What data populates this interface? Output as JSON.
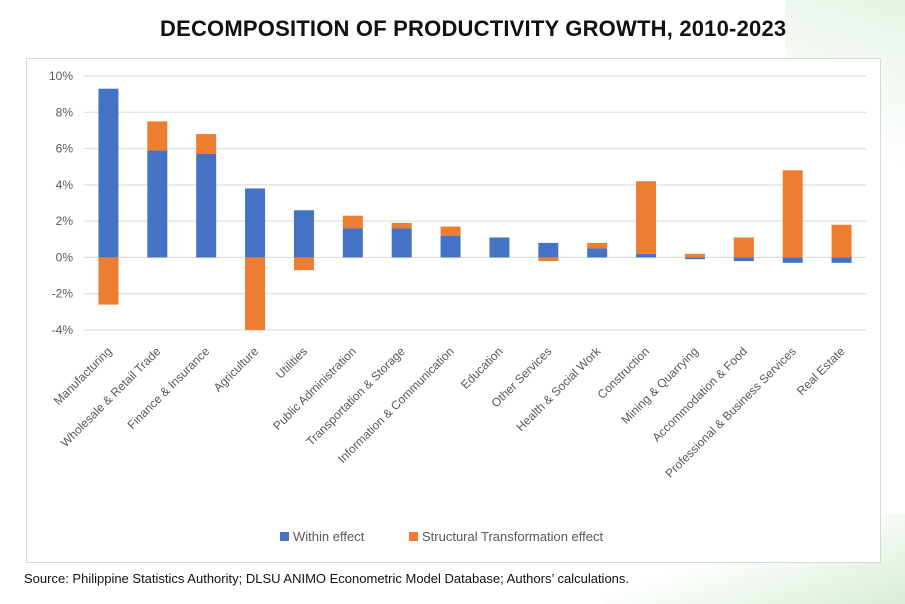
{
  "title": "DECOMPOSITION OF PRODUCTIVITY GROWTH, 2010-2023",
  "source": "Source: Philippine Statistics Authority; DLSU ANIMO Econometric Model Database; Authors’ calculations.",
  "colors": {
    "within": "#4472c4",
    "structural": "#ed7d31",
    "grid": "#d9d9d9",
    "axis_text": "#595959"
  },
  "chart_data": {
    "type": "bar",
    "stacked": true,
    "categories": [
      "Manufacturing",
      "Wholesale & Retail Trade",
      "Finance & Insurance",
      "Agriculture",
      "Utilities",
      "Public Administration",
      "Transportation & Storage",
      "Information & Communication",
      "Education",
      "Other Services",
      "Health & Social Work",
      "Construction",
      "Mining & Quarrying",
      "Accommodation & Food",
      "Professional & Business Services",
      "Real Estate"
    ],
    "series": [
      {
        "name": "Within effect",
        "values": [
          9.3,
          5.9,
          5.7,
          3.8,
          2.6,
          1.6,
          1.6,
          1.2,
          1.1,
          0.8,
          0.5,
          0.2,
          -0.1,
          -0.2,
          -0.3,
          -0.3
        ]
      },
      {
        "name": "Structural Transformation effect",
        "values": [
          -2.6,
          1.6,
          1.1,
          -4.0,
          -0.7,
          0.7,
          0.3,
          0.5,
          0.0,
          -0.2,
          0.3,
          4.0,
          0.2,
          1.1,
          4.8,
          1.8
        ]
      }
    ],
    "ylim": [
      -4,
      10
    ],
    "yticks": [
      -4,
      -2,
      0,
      2,
      4,
      6,
      8,
      10
    ],
    "ytick_labels": [
      "-4%",
      "-2%",
      "0%",
      "2%",
      "4%",
      "6%",
      "8%",
      "10%"
    ],
    "grid": true,
    "legend": "bottom"
  }
}
